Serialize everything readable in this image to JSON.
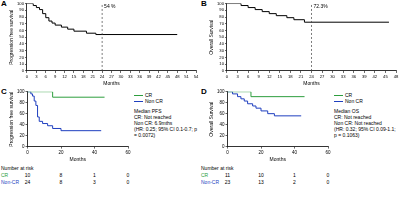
{
  "chart_data": [
    {
      "panel": "A",
      "type": "line",
      "xlabel": "Months",
      "ylabel": "Progression free survival",
      "xlim": [
        0,
        54
      ],
      "xticks": [
        0,
        3,
        6,
        9,
        12,
        15,
        18,
        21,
        24,
        27,
        30,
        33,
        36,
        39,
        42,
        45,
        48,
        51,
        54
      ],
      "ylim": [
        0,
        100
      ],
      "yticks": [
        0,
        10,
        20,
        30,
        40,
        50,
        60,
        70,
        80,
        90,
        100
      ],
      "grid": false,
      "series": [
        {
          "color": "#000000",
          "line_style": "steps",
          "x": [
            0,
            2,
            3,
            4,
            5,
            6,
            7,
            8,
            9,
            11,
            13,
            15,
            19,
            22,
            48
          ],
          "values": [
            100,
            97,
            94,
            91,
            85,
            79,
            74,
            71,
            68,
            65,
            62,
            59,
            56,
            54,
            54
          ]
        }
      ],
      "annotation": {
        "x": 24,
        "label": "54 %",
        "line_style": "dashed"
      }
    },
    {
      "panel": "B",
      "type": "line",
      "xlabel": "Months",
      "ylabel": "Overall Survival",
      "xlim": [
        0,
        48
      ],
      "xticks": [
        0,
        3,
        6,
        9,
        12,
        15,
        18,
        21,
        24,
        27,
        30,
        33,
        36,
        39,
        42,
        45,
        48
      ],
      "ylim": [
        0,
        100
      ],
      "yticks": [
        0,
        10,
        20,
        30,
        40,
        50,
        60,
        70,
        80,
        90,
        100
      ],
      "grid": false,
      "series": [
        {
          "color": "#000000",
          "line_style": "steps",
          "x": [
            0,
            4,
            6,
            8,
            10,
            12,
            14,
            17,
            19,
            22,
            46
          ],
          "values": [
            100,
            97,
            94,
            91,
            88,
            85,
            82,
            79,
            76,
            72.3,
            72.3
          ]
        }
      ],
      "annotation": {
        "x": 24,
        "label": "72.3%",
        "line_style": "dashed"
      }
    },
    {
      "panel": "C",
      "type": "line",
      "xlabel": "Months",
      "ylabel": "Progression free survival",
      "xlim": [
        0,
        60
      ],
      "xticks": [
        0,
        20,
        40,
        60
      ],
      "ylim": [
        0,
        100
      ],
      "yticks": [
        0,
        20,
        40,
        60,
        80,
        100
      ],
      "grid": false,
      "legend": "right",
      "series": [
        {
          "name": "CR",
          "color": "#2e9e3e",
          "line_style": "steps",
          "x": [
            0,
            15,
            46
          ],
          "values": [
            100,
            90,
            90
          ]
        },
        {
          "name": "Non CR",
          "color": "#1f3fbf",
          "line_style": "steps",
          "x": [
            0,
            2,
            3,
            4,
            5,
            6,
            7,
            9,
            12,
            15,
            20,
            44
          ],
          "values": [
            100,
            96,
            92,
            83,
            75,
            54,
            46,
            42,
            38,
            33,
            29,
            29
          ]
        }
      ],
      "annotation_text": [
        "Median PFS",
        "CR: Not reached",
        "Non CR: 6.9mths",
        "(HR: 0.25; 95% CI 0.1-0.7; p = 0.0072)"
      ],
      "at_risk": {
        "title": "Number at risk",
        "times": [
          0,
          20,
          40,
          60
        ],
        "rows": [
          {
            "name": "CR",
            "values": [
              10,
              8,
              1,
              0
            ]
          },
          {
            "name": "Non-CR",
            "values": [
              24,
              8,
              3,
              0
            ]
          }
        ]
      }
    },
    {
      "panel": "D",
      "type": "line",
      "xlabel": "Months",
      "ylabel": "Overall Survival",
      "xlim": [
        0,
        60
      ],
      "xticks": [
        0,
        20,
        40,
        60
      ],
      "ylim": [
        0,
        100
      ],
      "yticks": [
        0,
        20,
        40,
        60,
        80,
        100
      ],
      "grid": false,
      "legend": "right",
      "series": [
        {
          "name": "CR",
          "color": "#2e9e3e",
          "line_style": "steps",
          "x": [
            0,
            14,
            46
          ],
          "values": [
            100,
            91,
            91
          ]
        },
        {
          "name": "Non CR",
          "color": "#1f3fbf",
          "line_style": "steps",
          "x": [
            0,
            3,
            6,
            8,
            10,
            12,
            15,
            17,
            20,
            24,
            28,
            44
          ],
          "values": [
            100,
            96,
            91,
            87,
            83,
            78,
            74,
            70,
            65,
            60,
            56,
            56
          ]
        }
      ],
      "annotation_text": [
        "Median OS",
        "CR: Not reached",
        "Non CR: Not reached",
        "(HR: 0.32; 95% CI 0.09-1.1; p = 0.1063)"
      ],
      "at_risk": {
        "title": "Number at risk",
        "times": [
          0,
          20,
          40,
          60
        ],
        "rows": [
          {
            "name": "CR",
            "values": [
              11,
              10,
              1,
              0
            ]
          },
          {
            "name": "Non-CR",
            "values": [
              23,
              13,
              2,
              0
            ]
          }
        ]
      }
    }
  ]
}
